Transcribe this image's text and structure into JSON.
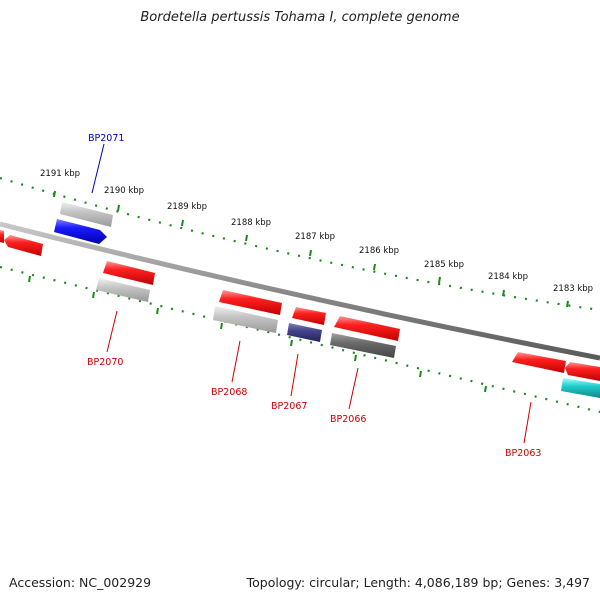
{
  "title": "Bordetella pertussis Tohama I, complete genome",
  "footer": {
    "accession": "Accession: NC_002929",
    "summary": "Topology: circular; Length: 4,086,189 bp; Genes: 3,497"
  },
  "ruler": {
    "labels": [
      "2191 kbp",
      "2190 kbp",
      "2189 kbp",
      "2188 kbp",
      "2187 kbp",
      "2186 kbp",
      "2185 kbp",
      "2184 kbp",
      "2183 kbp"
    ],
    "tick_color": "#1a8a1a"
  },
  "genes": {
    "labels": [
      "BP2071",
      "BP2070",
      "BP2068",
      "BP2067",
      "BP2066",
      "BP2063"
    ],
    "label_colors": {
      "forward": "#0000cc",
      "reverse": "#cc0000"
    }
  },
  "colors": {
    "backbone": "#8a8a8a",
    "red_feature": "#ee1111",
    "blue_feature": "#1a1aee",
    "gray_feature": "#b8b8b8",
    "dark_gray_feature": "#666666",
    "navy_feature": "#3a3a88",
    "cyan_feature": "#20c8c8"
  }
}
